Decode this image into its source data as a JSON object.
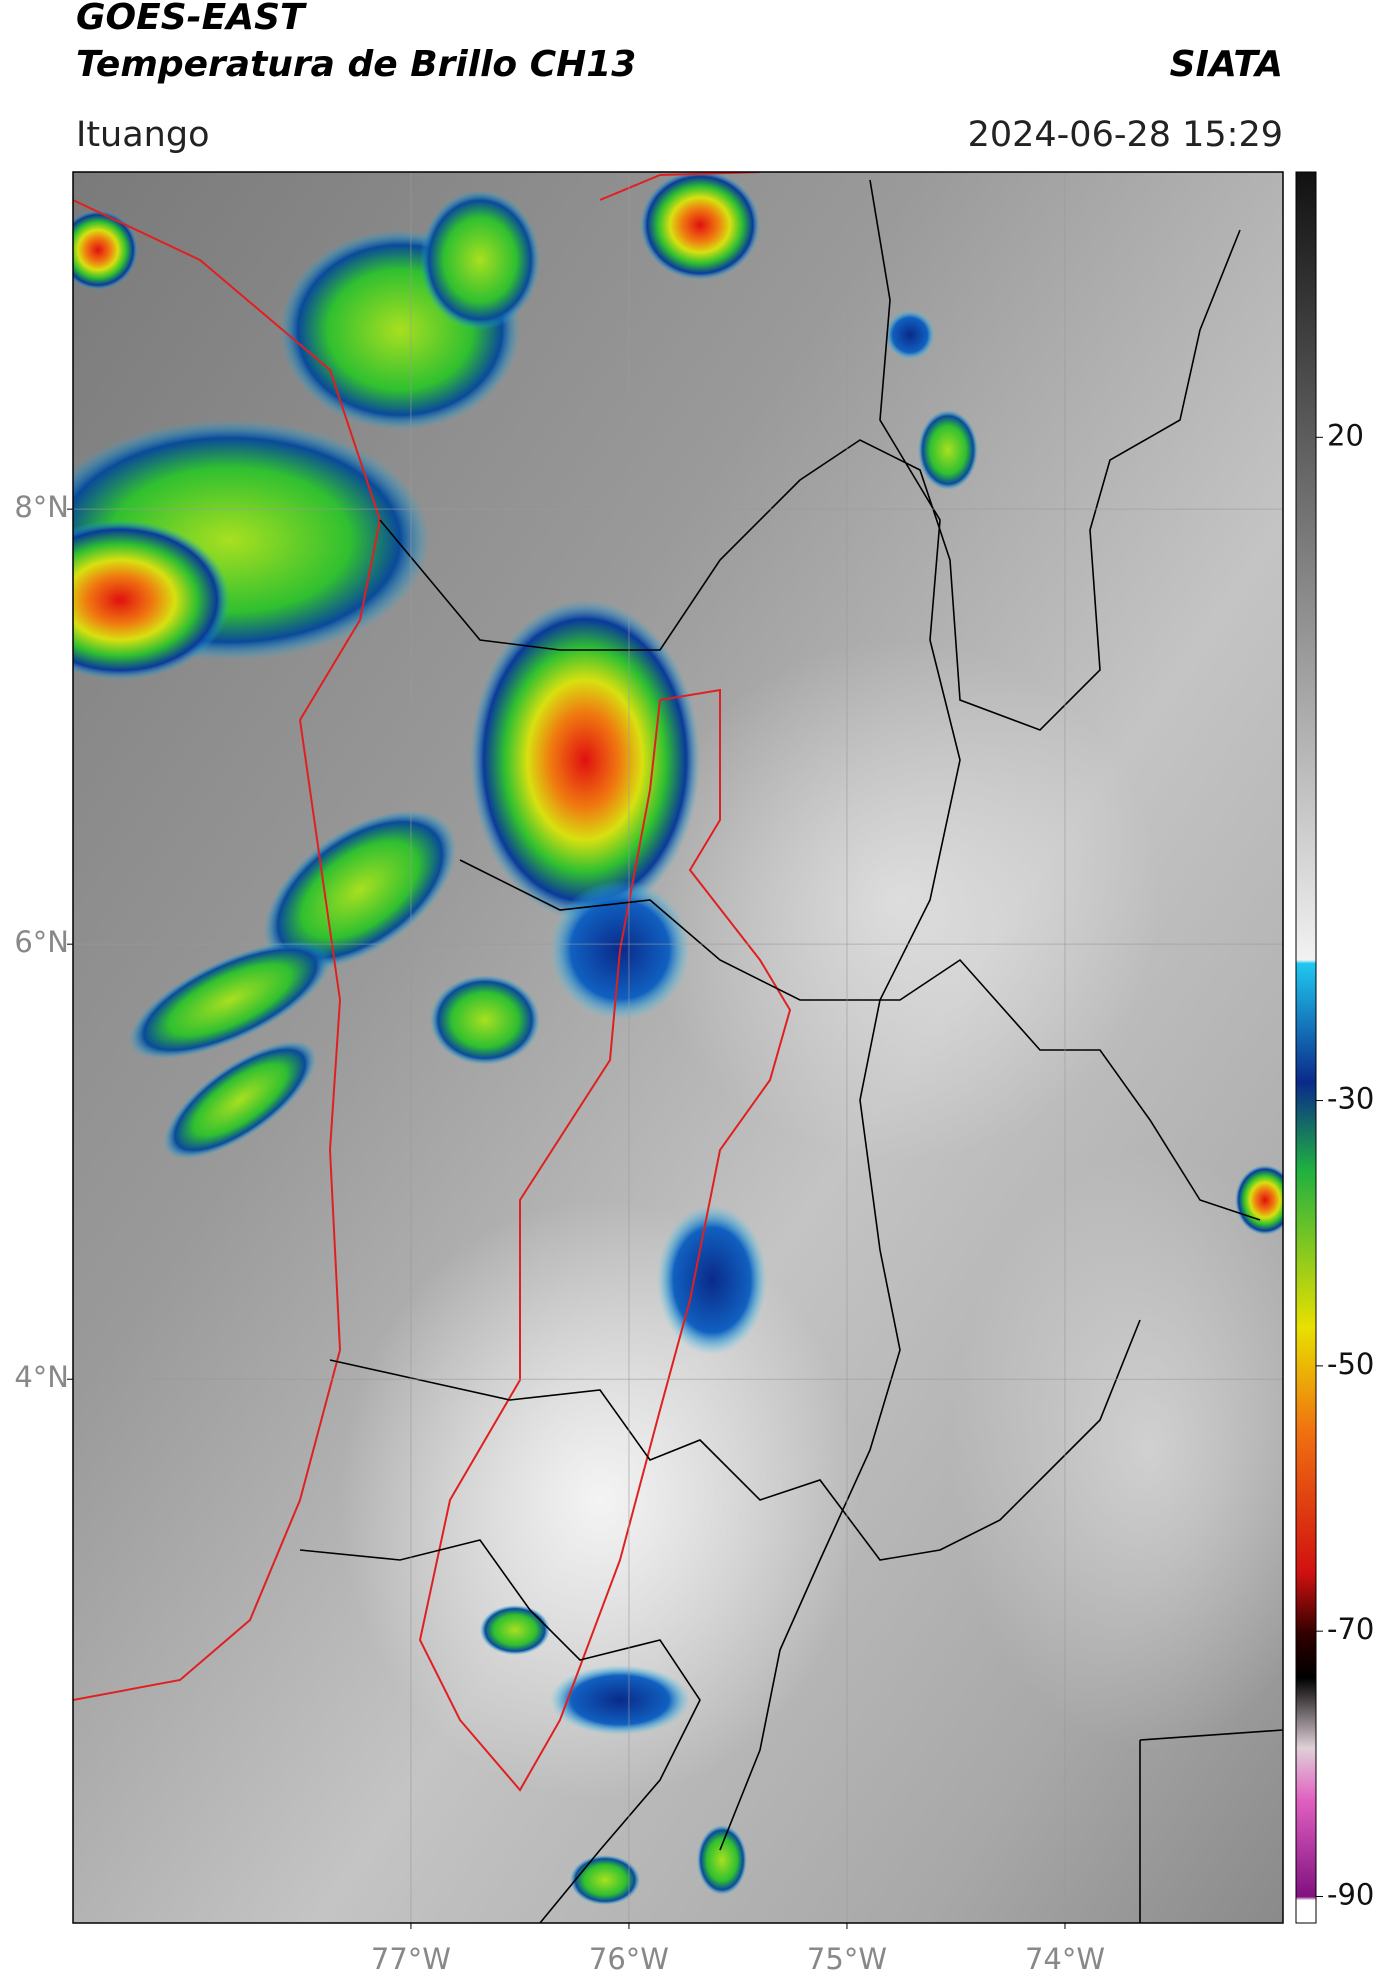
{
  "header": {
    "title": "GOES-EAST",
    "subtitle": "Temperatura de Brillo CH13",
    "source": "SIATA",
    "location": "Ituango",
    "datetime": "2024-06-28 15:29"
  },
  "map": {
    "xlim": [
      -78.55,
      -73
    ],
    "ylim": [
      1.5,
      9.55
    ],
    "xticks": [
      {
        "value": -77,
        "label": "77°W"
      },
      {
        "value": -76,
        "label": "76°W"
      },
      {
        "value": -75,
        "label": "75°W"
      },
      {
        "value": -74,
        "label": "74°W"
      }
    ],
    "yticks": [
      {
        "value": 8,
        "label": "8°N"
      },
      {
        "value": 6,
        "label": "6°N"
      },
      {
        "value": 4,
        "label": "4°N"
      }
    ],
    "grid": true
  },
  "colorbar": {
    "ylim": [
      -92,
      40
    ],
    "yticks": [
      20,
      -30,
      -50,
      -70,
      -90
    ]
  }
}
